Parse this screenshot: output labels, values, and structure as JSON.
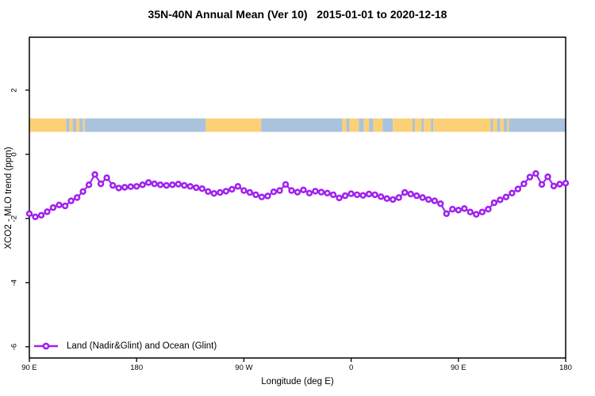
{
  "page": {
    "background": "#ffffff"
  },
  "chart_data": {
    "type": "line",
    "title": "35N-40N Annual Mean (Ver 10)   2015-01-01 to 2020-12-18",
    "xlabel": "Longitude (deg E)",
    "ylabel": "XCO2 - MLO trend (ppm)",
    "xlim": [
      90,
      540
    ],
    "ylim": [
      -6.35,
      3.65
    ],
    "grid": false,
    "x_ticks": [
      {
        "value": 90,
        "label": "90 E"
      },
      {
        "value": 180,
        "label": "180"
      },
      {
        "value": 270,
        "label": "90 W"
      },
      {
        "value": 360,
        "label": "0"
      },
      {
        "value": 450,
        "label": "90 E"
      },
      {
        "value": 540,
        "label": "180"
      }
    ],
    "y_ticks": [
      {
        "value": 2,
        "label": "2"
      },
      {
        "value": 0,
        "label": "0"
      },
      {
        "value": -2,
        "label": "-2"
      },
      {
        "value": -4,
        "label": "-4"
      },
      {
        "value": -6,
        "label": "-6"
      }
    ],
    "legend": {
      "position": "bottom-left",
      "entries": [
        {
          "label": "Land (Nadir&Glint) and Ocean (Glint)",
          "color": "#a020f0",
          "marker": "open-circle"
        }
      ]
    },
    "map_band": {
      "description": "land-ocean longitude strip for 35N-40N",
      "y_top": 1.12,
      "y_bottom": 0.7,
      "land_color": "#fbd077",
      "ocean_color": "#a9c3de",
      "segments": [
        {
          "from": 90,
          "to": 121,
          "surface": "land"
        },
        {
          "from": 121,
          "to": 123.5,
          "surface": "ocean"
        },
        {
          "from": 123.5,
          "to": 126.5,
          "surface": "land"
        },
        {
          "from": 126.5,
          "to": 129.5,
          "surface": "ocean"
        },
        {
          "from": 129.5,
          "to": 132,
          "surface": "land"
        },
        {
          "from": 132,
          "to": 135,
          "surface": "ocean"
        },
        {
          "from": 135,
          "to": 136.5,
          "surface": "land"
        },
        {
          "from": 136.5,
          "to": 238,
          "surface": "ocean"
        },
        {
          "from": 238,
          "to": 284.5,
          "surface": "land"
        },
        {
          "from": 284.5,
          "to": 352.5,
          "surface": "ocean"
        },
        {
          "from": 352.5,
          "to": 356,
          "surface": "land"
        },
        {
          "from": 356,
          "to": 358.5,
          "surface": "ocean"
        },
        {
          "from": 358.5,
          "to": 366.5,
          "surface": "land"
        },
        {
          "from": 366.5,
          "to": 370.5,
          "surface": "ocean"
        },
        {
          "from": 370.5,
          "to": 375,
          "surface": "land"
        },
        {
          "from": 375,
          "to": 378.5,
          "surface": "ocean"
        },
        {
          "from": 378.5,
          "to": 386.5,
          "surface": "land"
        },
        {
          "from": 386.5,
          "to": 395,
          "surface": "ocean"
        },
        {
          "from": 395,
          "to": 411.5,
          "surface": "land"
        },
        {
          "from": 411.5,
          "to": 413.5,
          "surface": "ocean"
        },
        {
          "from": 413.5,
          "to": 419,
          "surface": "land"
        },
        {
          "from": 419,
          "to": 421,
          "surface": "ocean"
        },
        {
          "from": 421,
          "to": 427,
          "surface": "land"
        },
        {
          "from": 427,
          "to": 429,
          "surface": "ocean"
        },
        {
          "from": 429,
          "to": 477,
          "surface": "land"
        },
        {
          "from": 477,
          "to": 479,
          "surface": "ocean"
        },
        {
          "from": 479,
          "to": 482.5,
          "surface": "land"
        },
        {
          "from": 482.5,
          "to": 485,
          "surface": "ocean"
        },
        {
          "from": 485,
          "to": 488,
          "surface": "land"
        },
        {
          "from": 488,
          "to": 491,
          "surface": "ocean"
        },
        {
          "from": 491,
          "to": 492.5,
          "surface": "land"
        },
        {
          "from": 492.5,
          "to": 540,
          "surface": "ocean"
        }
      ]
    },
    "series": [
      {
        "name": "Land (Nadir&Glint) and Ocean (Glint)",
        "color": "#a020f0",
        "marker": "open-circle",
        "x": [
          90,
          95,
          100,
          105,
          110,
          115,
          120,
          125,
          130,
          135,
          140,
          145,
          150,
          155,
          160,
          165,
          170,
          175,
          180,
          185,
          190,
          195,
          200,
          205,
          210,
          215,
          220,
          225,
          230,
          235,
          240,
          245,
          250,
          255,
          260,
          265,
          270,
          275,
          280,
          285,
          290,
          295,
          300,
          305,
          310,
          315,
          320,
          325,
          330,
          335,
          340,
          345,
          350,
          355,
          360,
          365,
          370,
          375,
          380,
          385,
          390,
          395,
          400,
          405,
          410,
          415,
          420,
          425,
          430,
          435,
          440,
          445,
          450,
          455,
          460,
          465,
          470,
          475,
          480,
          485,
          490,
          495,
          500,
          505,
          510,
          515,
          520,
          525,
          530,
          535,
          540
        ],
        "values": [
          -1.85,
          -1.95,
          -1.9,
          -1.79,
          -1.66,
          -1.58,
          -1.61,
          -1.45,
          -1.35,
          -1.16,
          -0.95,
          -0.63,
          -0.92,
          -0.73,
          -0.97,
          -1.05,
          -1.03,
          -1.01,
          -1.0,
          -0.95,
          -0.88,
          -0.92,
          -0.95,
          -0.97,
          -0.95,
          -0.93,
          -0.97,
          -1.0,
          -1.04,
          -1.07,
          -1.16,
          -1.22,
          -1.19,
          -1.15,
          -1.09,
          -1.0,
          -1.13,
          -1.19,
          -1.26,
          -1.33,
          -1.3,
          -1.17,
          -1.13,
          -0.94,
          -1.13,
          -1.18,
          -1.11,
          -1.21,
          -1.15,
          -1.18,
          -1.21,
          -1.26,
          -1.36,
          -1.29,
          -1.23,
          -1.26,
          -1.28,
          -1.24,
          -1.26,
          -1.32,
          -1.38,
          -1.41,
          -1.35,
          -1.19,
          -1.24,
          -1.29,
          -1.35,
          -1.41,
          -1.45,
          -1.54,
          -1.85,
          -1.71,
          -1.74,
          -1.69,
          -1.8,
          -1.87,
          -1.8,
          -1.71,
          -1.51,
          -1.42,
          -1.33,
          -1.21,
          -1.08,
          -0.92,
          -0.71,
          -0.6,
          -0.94,
          -0.7,
          -0.99,
          -0.93,
          -0.9
        ]
      }
    ]
  }
}
